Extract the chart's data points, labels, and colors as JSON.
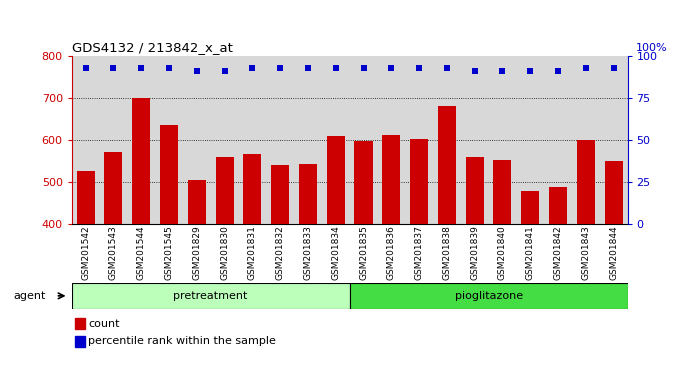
{
  "title": "GDS4132 / 213842_x_at",
  "categories": [
    "GSM201542",
    "GSM201543",
    "GSM201544",
    "GSM201545",
    "GSM201829",
    "GSM201830",
    "GSM201831",
    "GSM201832",
    "GSM201833",
    "GSM201834",
    "GSM201835",
    "GSM201836",
    "GSM201837",
    "GSM201838",
    "GSM201839",
    "GSM201840",
    "GSM201841",
    "GSM201842",
    "GSM201843",
    "GSM201844"
  ],
  "bar_values": [
    527,
    572,
    700,
    637,
    505,
    560,
    567,
    540,
    544,
    610,
    598,
    613,
    603,
    680,
    560,
    553,
    479,
    488,
    600,
    550
  ],
  "percentile_values": [
    93,
    93,
    93,
    93,
    91,
    91,
    93,
    93,
    93,
    93,
    93,
    93,
    93,
    93,
    91,
    91,
    91,
    91,
    93,
    93
  ],
  "bar_color": "#cc0000",
  "percentile_color": "#0000cc",
  "ylim_left": [
    400,
    800
  ],
  "ylim_right": [
    0,
    100
  ],
  "yticks_left": [
    400,
    500,
    600,
    700,
    800
  ],
  "yticks_right": [
    0,
    25,
    50,
    75,
    100
  ],
  "pretreatment_count": 10,
  "pioglitazone_count": 10,
  "group_colors_light": "#bbffbb",
  "group_colors_dark": "#44dd44",
  "group_labels": [
    "pretreatment",
    "pioglitazone"
  ],
  "agent_label": "agent",
  "legend_count_label": "count",
  "legend_percentile_label": "percentile rank within the sample",
  "right_yaxis_label": "100%",
  "col_bg": "#d8d8d8",
  "plot_bg": "#ffffff",
  "grid_lines": [
    500,
    600,
    700
  ]
}
